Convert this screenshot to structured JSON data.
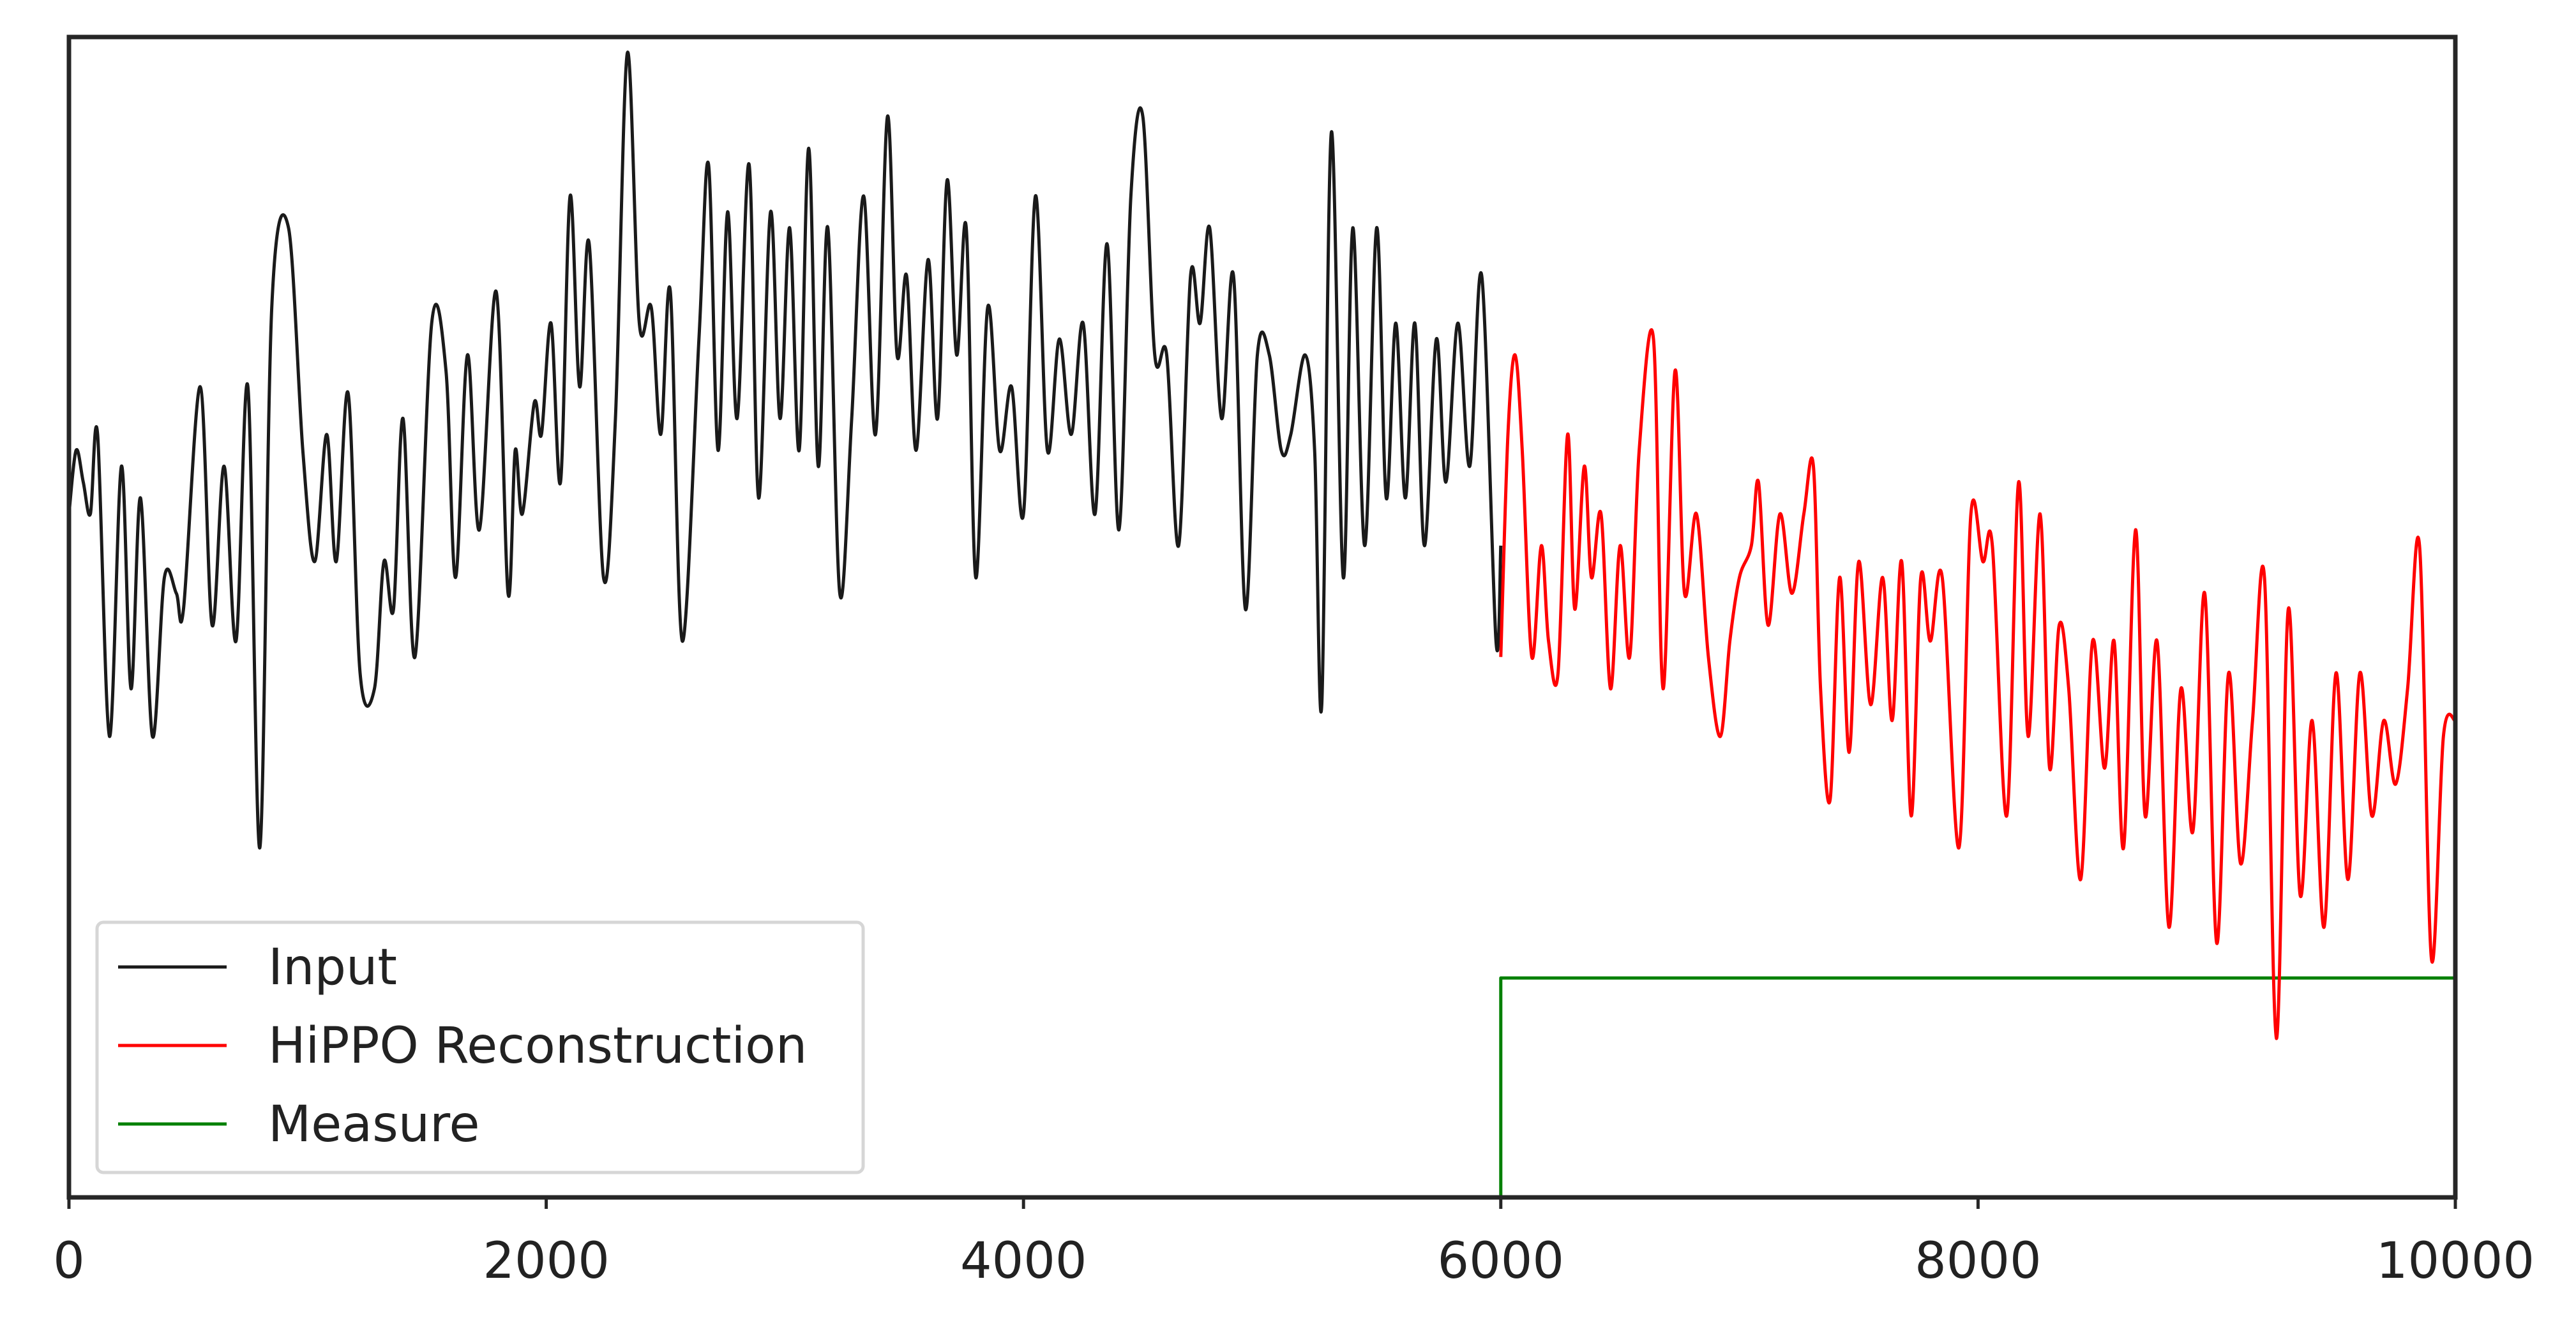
{
  "chart_data": {
    "type": "line",
    "title": "",
    "xlabel": "",
    "ylabel": "",
    "xlim": [
      0,
      10000
    ],
    "ylim": [
      -2.05,
      1.6
    ],
    "x_ticks": [
      "0",
      "2000",
      "4000",
      "6000",
      "8000",
      "10000"
    ],
    "y_ticks": [],
    "grid": false,
    "legend_position": "lower-left",
    "series": [
      {
        "name": "Input",
        "color": "#1a1a1a",
        "points": [
          [
            0,
            0.1
          ],
          [
            30,
            0.3
          ],
          [
            60,
            0.2
          ],
          [
            90,
            0.1
          ],
          [
            120,
            0.35
          ],
          [
            170,
            -0.6
          ],
          [
            220,
            0.25
          ],
          [
            260,
            -0.45
          ],
          [
            300,
            0.15
          ],
          [
            350,
            -0.6
          ],
          [
            400,
            -0.1
          ],
          [
            450,
            -0.15
          ],
          [
            480,
            -0.2
          ],
          [
            550,
            0.5
          ],
          [
            600,
            -0.25
          ],
          [
            650,
            0.25
          ],
          [
            700,
            -0.3
          ],
          [
            750,
            0.5
          ],
          [
            800,
            -0.95
          ],
          [
            850,
            0.75
          ],
          [
            920,
            1.0
          ],
          [
            980,
            0.3
          ],
          [
            1030,
            -0.05
          ],
          [
            1080,
            0.35
          ],
          [
            1120,
            -0.05
          ],
          [
            1170,
            0.48
          ],
          [
            1220,
            -0.4
          ],
          [
            1280,
            -0.45
          ],
          [
            1320,
            -0.05
          ],
          [
            1360,
            -0.2
          ],
          [
            1400,
            0.4
          ],
          [
            1450,
            -0.35
          ],
          [
            1520,
            0.7
          ],
          [
            1580,
            0.55
          ],
          [
            1620,
            -0.1
          ],
          [
            1670,
            0.6
          ],
          [
            1720,
            0.05
          ],
          [
            1790,
            0.8
          ],
          [
            1840,
            -0.15
          ],
          [
            1870,
            0.3
          ],
          [
            1900,
            0.1
          ],
          [
            1950,
            0.45
          ],
          [
            1980,
            0.35
          ],
          [
            2020,
            0.7
          ],
          [
            2060,
            0.2
          ],
          [
            2100,
            1.1
          ],
          [
            2140,
            0.5
          ],
          [
            2180,
            0.95
          ],
          [
            2240,
            -0.1
          ],
          [
            2290,
            0.4
          ],
          [
            2340,
            1.55
          ],
          [
            2390,
            0.7
          ],
          [
            2440,
            0.75
          ],
          [
            2480,
            0.35
          ],
          [
            2520,
            0.8
          ],
          [
            2570,
            -0.3
          ],
          [
            2640,
            0.65
          ],
          [
            2680,
            1.2
          ],
          [
            2720,
            0.3
          ],
          [
            2760,
            1.05
          ],
          [
            2800,
            0.4
          ],
          [
            2850,
            1.2
          ],
          [
            2890,
            0.15
          ],
          [
            2940,
            1.05
          ],
          [
            2980,
            0.4
          ],
          [
            3020,
            1.0
          ],
          [
            3060,
            0.3
          ],
          [
            3100,
            1.25
          ],
          [
            3140,
            0.25
          ],
          [
            3180,
            1.0
          ],
          [
            3230,
            -0.15
          ],
          [
            3280,
            0.4
          ],
          [
            3330,
            1.1
          ],
          [
            3380,
            0.35
          ],
          [
            3430,
            1.35
          ],
          [
            3470,
            0.6
          ],
          [
            3510,
            0.85
          ],
          [
            3550,
            0.3
          ],
          [
            3600,
            0.9
          ],
          [
            3640,
            0.4
          ],
          [
            3680,
            1.15
          ],
          [
            3720,
            0.6
          ],
          [
            3760,
            1.0
          ],
          [
            3800,
            -0.1
          ],
          [
            3850,
            0.75
          ],
          [
            3900,
            0.3
          ],
          [
            3950,
            0.5
          ],
          [
            4000,
            0.1
          ],
          [
            4050,
            1.1
          ],
          [
            4100,
            0.3
          ],
          [
            4150,
            0.65
          ],
          [
            4200,
            0.35
          ],
          [
            4250,
            0.7
          ],
          [
            4300,
            0.1
          ],
          [
            4350,
            0.95
          ],
          [
            4400,
            0.05
          ],
          [
            4450,
            1.1
          ],
          [
            4500,
            1.35
          ],
          [
            4550,
            0.6
          ],
          [
            4600,
            0.6
          ],
          [
            4650,
            0.0
          ],
          [
            4700,
            0.85
          ],
          [
            4740,
            0.7
          ],
          [
            4780,
            1.0
          ],
          [
            4830,
            0.4
          ],
          [
            4880,
            0.85
          ],
          [
            4930,
            -0.2
          ],
          [
            4980,
            0.6
          ],
          [
            5030,
            0.6
          ],
          [
            5080,
            0.3
          ],
          [
            5120,
            0.35
          ],
          [
            5180,
            0.6
          ],
          [
            5220,
            0.3
          ],
          [
            5250,
            -0.5
          ],
          [
            5290,
            1.3
          ],
          [
            5340,
            -0.1
          ],
          [
            5380,
            1.0
          ],
          [
            5430,
            0.0
          ],
          [
            5480,
            1.0
          ],
          [
            5520,
            0.15
          ],
          [
            5560,
            0.7
          ],
          [
            5600,
            0.15
          ],
          [
            5640,
            0.7
          ],
          [
            5680,
            0.0
          ],
          [
            5730,
            0.65
          ],
          [
            5770,
            0.2
          ],
          [
            5820,
            0.7
          ],
          [
            5870,
            0.25
          ],
          [
            5920,
            0.85
          ],
          [
            5980,
            -0.3
          ],
          [
            6000,
            0.0
          ]
        ]
      },
      {
        "name": "HiPPO Reconstruction",
        "color": "#ff0000",
        "points": [
          [
            6000,
            -0.35
          ],
          [
            6030,
            0.35
          ],
          [
            6060,
            0.6
          ],
          [
            6090,
            0.3
          ],
          [
            6130,
            -0.35
          ],
          [
            6170,
            0.0
          ],
          [
            6200,
            -0.3
          ],
          [
            6240,
            -0.4
          ],
          [
            6280,
            0.35
          ],
          [
            6310,
            -0.2
          ],
          [
            6350,
            0.25
          ],
          [
            6380,
            -0.1
          ],
          [
            6420,
            0.1
          ],
          [
            6460,
            -0.45
          ],
          [
            6500,
            0.0
          ],
          [
            6540,
            -0.35
          ],
          [
            6580,
            0.3
          ],
          [
            6640,
            0.65
          ],
          [
            6680,
            -0.45
          ],
          [
            6730,
            0.55
          ],
          [
            6770,
            -0.15
          ],
          [
            6820,
            0.1
          ],
          [
            6870,
            -0.35
          ],
          [
            6920,
            -0.6
          ],
          [
            6960,
            -0.3
          ],
          [
            7000,
            -0.1
          ],
          [
            7050,
            0.0
          ],
          [
            7080,
            0.2
          ],
          [
            7120,
            -0.25
          ],
          [
            7170,
            0.1
          ],
          [
            7220,
            -0.15
          ],
          [
            7270,
            0.1
          ],
          [
            7310,
            0.25
          ],
          [
            7340,
            -0.45
          ],
          [
            7380,
            -0.8
          ],
          [
            7420,
            -0.1
          ],
          [
            7460,
            -0.65
          ],
          [
            7500,
            -0.05
          ],
          [
            7550,
            -0.5
          ],
          [
            7600,
            -0.1
          ],
          [
            7640,
            -0.55
          ],
          [
            7680,
            -0.05
          ],
          [
            7720,
            -0.85
          ],
          [
            7760,
            -0.1
          ],
          [
            7800,
            -0.3
          ],
          [
            7850,
            -0.1
          ],
          [
            7920,
            -0.95
          ],
          [
            7970,
            0.1
          ],
          [
            8020,
            -0.05
          ],
          [
            8060,
            0.0
          ],
          [
            8120,
            -0.85
          ],
          [
            8170,
            0.2
          ],
          [
            8210,
            -0.6
          ],
          [
            8260,
            0.1
          ],
          [
            8300,
            -0.7
          ],
          [
            8340,
            -0.25
          ],
          [
            8380,
            -0.45
          ],
          [
            8430,
            -1.05
          ],
          [
            8480,
            -0.3
          ],
          [
            8530,
            -0.7
          ],
          [
            8570,
            -0.3
          ],
          [
            8610,
            -0.95
          ],
          [
            8660,
            0.05
          ],
          [
            8700,
            -0.85
          ],
          [
            8750,
            -0.3
          ],
          [
            8800,
            -1.2
          ],
          [
            8850,
            -0.45
          ],
          [
            8900,
            -0.9
          ],
          [
            8950,
            -0.15
          ],
          [
            9000,
            -1.25
          ],
          [
            9050,
            -0.4
          ],
          [
            9100,
            -1.0
          ],
          [
            9150,
            -0.55
          ],
          [
            9200,
            -0.1
          ],
          [
            9250,
            -1.55
          ],
          [
            9300,
            -0.2
          ],
          [
            9350,
            -1.1
          ],
          [
            9400,
            -0.55
          ],
          [
            9450,
            -1.2
          ],
          [
            9500,
            -0.4
          ],
          [
            9550,
            -1.05
          ],
          [
            9600,
            -0.4
          ],
          [
            9650,
            -0.85
          ],
          [
            9700,
            -0.55
          ],
          [
            9750,
            -0.75
          ],
          [
            9800,
            -0.45
          ],
          [
            9850,
            0.0
          ],
          [
            9900,
            -1.3
          ],
          [
            9950,
            -0.6
          ],
          [
            10000,
            -0.55
          ]
        ]
      },
      {
        "name": "Measure",
        "color": "#008000",
        "points": [
          [
            6000,
            -2.05
          ],
          [
            6000,
            -1.36
          ],
          [
            10000,
            -1.36
          ]
        ]
      }
    ]
  }
}
